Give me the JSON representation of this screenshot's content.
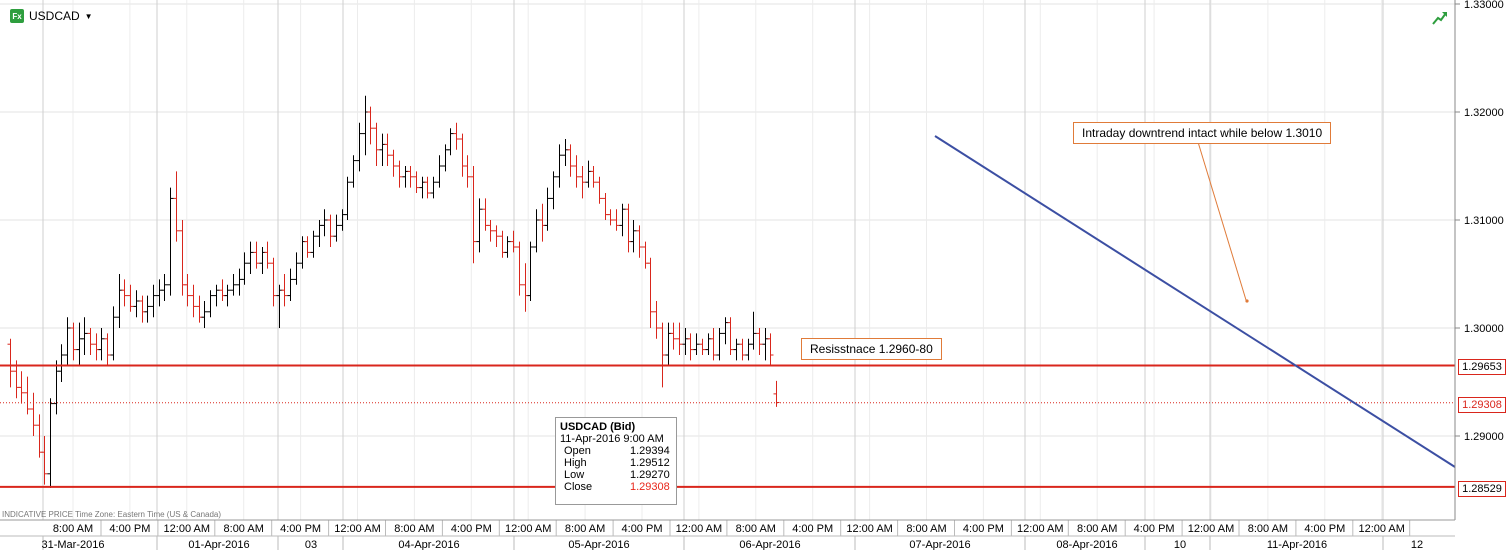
{
  "symbol": {
    "name": "USDCAD",
    "badge": "Fx"
  },
  "annotations": {
    "downtrend": "Intraday downtrend intact while below 1.3010",
    "resistance": "Resisstnace  1.2960-80"
  },
  "footnote": "INDICATIVE PRICE   Time Zone: Eastern Time (US & Canada)",
  "tooltip": {
    "title": "USDCAD (Bid)",
    "datetime": "11-Apr-2016 9:00 AM",
    "rows": [
      {
        "label": "Open",
        "value": "1.29394"
      },
      {
        "label": "High",
        "value": "1.29512"
      },
      {
        "label": "Low",
        "value": "1.29270"
      },
      {
        "label": "Close",
        "value": "1.29308"
      }
    ]
  },
  "price_tags": {
    "resistance": "1.29653",
    "last": "1.29308",
    "support": "1.28529"
  },
  "colors": {
    "up": "#000000",
    "down": "#d9261c",
    "trendline": "#3c4fa3",
    "level": "#d9261c",
    "callout_border": "#e07b39"
  },
  "chart_data": {
    "type": "ohlc",
    "y_ticks": [
      "1.33000",
      "1.32000",
      "1.31000",
      "1.30000",
      "1.29000"
    ],
    "ylim": [
      1.2835,
      1.33
    ],
    "time_ticks": [
      "8:00 AM",
      "4:00 PM",
      "12:00 AM",
      "8:00 AM",
      "4:00 PM",
      "12:00 AM",
      "8:00 AM",
      "4:00 PM",
      "12:00 AM",
      "8:00 AM",
      "4:00 PM",
      "12:00 AM",
      "8:00 AM",
      "4:00 PM",
      "12:00 AM",
      "8:00 AM",
      "4:00 PM",
      "12:00 AM",
      "8:00 AM",
      "4:00 PM",
      "12:00 AM",
      "8:00 AM",
      "4:00 PM",
      "12:00 AM"
    ],
    "date_labels": [
      "31-Mar-2016",
      "01-Apr-2016",
      "03",
      "04-Apr-2016",
      "05-Apr-2016",
      "06-Apr-2016",
      "07-Apr-2016",
      "08-Apr-2016",
      "10",
      "11-Apr-2016",
      "12"
    ],
    "horizontal_levels": [
      1.29653,
      1.28529
    ],
    "last_price": 1.29308,
    "trendline": {
      "from": [
        1.3177
      ],
      "to": [
        1.2893
      ]
    },
    "bars": [
      [
        1.2985,
        1.299,
        1.2945,
        1.296
      ],
      [
        1.296,
        1.297,
        1.2935,
        1.2945
      ],
      [
        1.2945,
        1.296,
        1.293,
        1.294
      ],
      [
        1.294,
        1.2955,
        1.292,
        1.2925
      ],
      [
        1.2925,
        1.294,
        1.29,
        1.291
      ],
      [
        1.291,
        1.292,
        1.288,
        1.2885
      ],
      [
        1.2885,
        1.29,
        1.2855,
        1.2865
      ],
      [
        1.2865,
        1.2935,
        1.2852,
        1.293
      ],
      [
        1.293,
        1.297,
        1.292,
        1.296
      ],
      [
        1.296,
        1.2985,
        1.295,
        1.2975
      ],
      [
        1.2975,
        1.301,
        1.2965,
        1.3
      ],
      [
        1.3,
        1.3005,
        1.297,
        1.298
      ],
      [
        1.298,
        1.3005,
        1.2965,
        1.299
      ],
      [
        1.299,
        1.301,
        1.2975,
        1.2995
      ],
      [
        1.2995,
        1.3,
        1.2975,
        1.2985
      ],
      [
        1.2985,
        1.2995,
        1.297,
        1.298
      ],
      [
        1.298,
        1.3,
        1.297,
        1.299
      ],
      [
        1.299,
        1.2995,
        1.2965,
        1.2975
      ],
      [
        1.2975,
        1.302,
        1.297,
        1.301
      ],
      [
        1.301,
        1.305,
        1.3,
        1.3035
      ],
      [
        1.3035,
        1.3045,
        1.302,
        1.303
      ],
      [
        1.303,
        1.304,
        1.3015,
        1.302
      ],
      [
        1.302,
        1.3035,
        1.301,
        1.3025
      ],
      [
        1.3025,
        1.303,
        1.3005,
        1.3015
      ],
      [
        1.3015,
        1.303,
        1.3005,
        1.302
      ],
      [
        1.302,
        1.304,
        1.301,
        1.303
      ],
      [
        1.303,
        1.3045,
        1.302,
        1.3035
      ],
      [
        1.3035,
        1.305,
        1.3025,
        1.304
      ],
      [
        1.304,
        1.313,
        1.303,
        1.312
      ],
      [
        1.312,
        1.3145,
        1.308,
        1.309
      ],
      [
        1.309,
        1.31,
        1.303,
        1.304
      ],
      [
        1.304,
        1.305,
        1.302,
        1.303
      ],
      [
        1.303,
        1.304,
        1.301,
        1.302
      ],
      [
        1.302,
        1.303,
        1.3005,
        1.301
      ],
      [
        1.301,
        1.3025,
        1.3,
        1.3015
      ],
      [
        1.3015,
        1.3035,
        1.301,
        1.303
      ],
      [
        1.303,
        1.304,
        1.302,
        1.3035
      ],
      [
        1.3035,
        1.3045,
        1.3025,
        1.303
      ],
      [
        1.303,
        1.304,
        1.302,
        1.3035
      ],
      [
        1.3035,
        1.305,
        1.303,
        1.304
      ],
      [
        1.304,
        1.3055,
        1.303,
        1.3045
      ],
      [
        1.3045,
        1.307,
        1.304,
        1.306
      ],
      [
        1.306,
        1.308,
        1.305,
        1.307
      ],
      [
        1.307,
        1.308,
        1.3055,
        1.306
      ],
      [
        1.306,
        1.3075,
        1.305,
        1.307
      ],
      [
        1.307,
        1.308,
        1.3055,
        1.306
      ],
      [
        1.306,
        1.3065,
        1.302,
        1.303
      ],
      [
        1.303,
        1.304,
        1.3,
        1.3035
      ],
      [
        1.3035,
        1.305,
        1.302,
        1.303
      ],
      [
        1.303,
        1.3055,
        1.3025,
        1.3045
      ],
      [
        1.3045,
        1.307,
        1.304,
        1.306
      ],
      [
        1.306,
        1.3085,
        1.3055,
        1.308
      ],
      [
        1.308,
        1.3085,
        1.3065,
        1.307
      ],
      [
        1.307,
        1.309,
        1.3065,
        1.3085
      ],
      [
        1.3085,
        1.31,
        1.3075,
        1.3095
      ],
      [
        1.3095,
        1.311,
        1.3085,
        1.31
      ],
      [
        1.31,
        1.3105,
        1.3075,
        1.3085
      ],
      [
        1.3085,
        1.3105,
        1.308,
        1.3095
      ],
      [
        1.3095,
        1.311,
        1.309,
        1.3105
      ],
      [
        1.3105,
        1.314,
        1.31,
        1.3135
      ],
      [
        1.3135,
        1.316,
        1.313,
        1.3155
      ],
      [
        1.3155,
        1.319,
        1.3145,
        1.318
      ],
      [
        1.318,
        1.3215,
        1.316,
        1.32
      ],
      [
        1.32,
        1.3205,
        1.317,
        1.3185
      ],
      [
        1.3185,
        1.319,
        1.315,
        1.3165
      ],
      [
        1.3165,
        1.318,
        1.315,
        1.317
      ],
      [
        1.317,
        1.318,
        1.315,
        1.316
      ],
      [
        1.316,
        1.3165,
        1.314,
        1.315
      ],
      [
        1.315,
        1.3155,
        1.313,
        1.314
      ],
      [
        1.314,
        1.315,
        1.313,
        1.3145
      ],
      [
        1.3145,
        1.315,
        1.313,
        1.314
      ],
      [
        1.314,
        1.3145,
        1.3125,
        1.313
      ],
      [
        1.313,
        1.314,
        1.312,
        1.3135
      ],
      [
        1.3135,
        1.314,
        1.312,
        1.3125
      ],
      [
        1.3125,
        1.314,
        1.312,
        1.3135
      ],
      [
        1.3135,
        1.316,
        1.313,
        1.315
      ],
      [
        1.315,
        1.317,
        1.3145,
        1.3165
      ],
      [
        1.3165,
        1.3185,
        1.316,
        1.318
      ],
      [
        1.318,
        1.319,
        1.3165,
        1.3175
      ],
      [
        1.3175,
        1.318,
        1.314,
        1.315
      ],
      [
        1.315,
        1.316,
        1.313,
        1.314
      ],
      [
        1.314,
        1.315,
        1.306,
        1.308
      ],
      [
        1.308,
        1.312,
        1.307,
        1.311
      ],
      [
        1.311,
        1.312,
        1.309,
        1.3095
      ],
      [
        1.3095,
        1.31,
        1.308,
        1.309
      ],
      [
        1.309,
        1.3095,
        1.3075,
        1.3085
      ],
      [
        1.3085,
        1.309,
        1.3065,
        1.307
      ],
      [
        1.307,
        1.3085,
        1.3065,
        1.308
      ],
      [
        1.308,
        1.309,
        1.307,
        1.3075
      ],
      [
        1.3075,
        1.308,
        1.303,
        1.304
      ],
      [
        1.304,
        1.306,
        1.3015,
        1.303
      ],
      [
        1.303,
        1.308,
        1.3025,
        1.3075
      ],
      [
        1.3075,
        1.311,
        1.307,
        1.31
      ],
      [
        1.31,
        1.3115,
        1.308,
        1.3095
      ],
      [
        1.3095,
        1.313,
        1.309,
        1.312
      ],
      [
        1.312,
        1.3145,
        1.311,
        1.314
      ],
      [
        1.314,
        1.317,
        1.313,
        1.316
      ],
      [
        1.316,
        1.3175,
        1.315,
        1.3165
      ],
      [
        1.3165,
        1.317,
        1.314,
        1.315
      ],
      [
        1.315,
        1.316,
        1.313,
        1.314
      ],
      [
        1.314,
        1.315,
        1.312,
        1.3135
      ],
      [
        1.3135,
        1.3155,
        1.313,
        1.3145
      ],
      [
        1.3145,
        1.315,
        1.313,
        1.3135
      ],
      [
        1.3135,
        1.314,
        1.3115,
        1.312
      ],
      [
        1.312,
        1.3125,
        1.31,
        1.3105
      ],
      [
        1.3105,
        1.311,
        1.3095,
        1.31
      ],
      [
        1.31,
        1.311,
        1.309,
        1.3095
      ],
      [
        1.3095,
        1.3115,
        1.3085,
        1.311
      ],
      [
        1.311,
        1.3115,
        1.307,
        1.308
      ],
      [
        1.308,
        1.31,
        1.307,
        1.309
      ],
      [
        1.309,
        1.3095,
        1.3065,
        1.3075
      ],
      [
        1.3075,
        1.308,
        1.3055,
        1.306
      ],
      [
        1.306,
        1.3065,
        1.3,
        1.3015
      ],
      [
        1.3015,
        1.3025,
        1.299,
        1.3
      ],
      [
        1.3,
        1.3005,
        1.2945,
        1.2975
      ],
      [
        1.2975,
        1.3005,
        1.2965,
        1.2995
      ],
      [
        1.2995,
        1.3005,
        1.298,
        1.299
      ],
      [
        1.299,
        1.3005,
        1.2975,
        1.2985
      ],
      [
        1.2985,
        1.3,
        1.2975,
        1.299
      ],
      [
        1.299,
        1.2995,
        1.297,
        1.298
      ],
      [
        1.298,
        1.2995,
        1.2975,
        1.2985
      ],
      [
        1.2985,
        1.299,
        1.2975,
        1.298
      ],
      [
        1.298,
        1.2995,
        1.2975,
        1.299
      ],
      [
        1.299,
        1.3,
        1.297,
        1.2975
      ],
      [
        1.2975,
        1.3,
        1.297,
        1.2995
      ],
      [
        1.2995,
        1.301,
        1.2985,
        1.3005
      ],
      [
        1.3005,
        1.301,
        1.2975,
        1.298
      ],
      [
        1.298,
        1.299,
        1.297,
        1.2985
      ],
      [
        1.2985,
        1.299,
        1.297,
        1.2975
      ],
      [
        1.2975,
        1.299,
        1.297,
        1.2985
      ],
      [
        1.2985,
        1.3015,
        1.298,
        1.2995
      ],
      [
        1.2995,
        1.3,
        1.2975,
        1.2985
      ],
      [
        1.2985,
        1.3,
        1.297,
        1.299
      ],
      [
        1.299,
        1.2995,
        1.2965,
        1.2975
      ],
      [
        1.2939,
        1.2951,
        1.2927,
        1.2931
      ]
    ]
  }
}
